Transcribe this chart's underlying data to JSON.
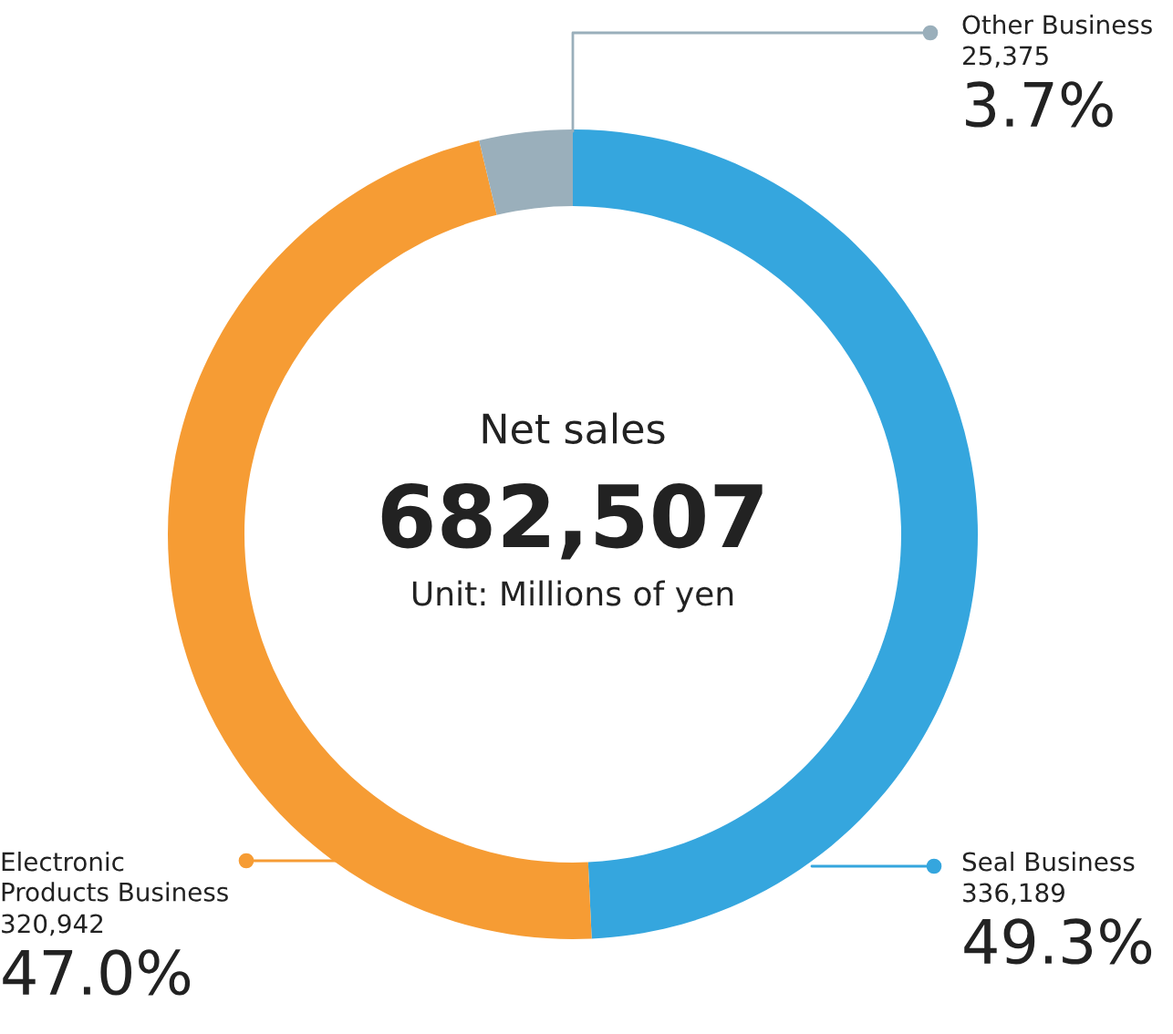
{
  "chart_data": {
    "type": "donut",
    "title": "Net sales",
    "subtitle": "682,507",
    "categories": [
      "Seal Business",
      "Electronic\nProducts Business",
      "Other Business"
    ],
    "values": [
      336189,
      320942,
      25375
    ],
    "colors": [
      "#35a6de",
      "#f69c34",
      "#9aafbb"
    ],
    "value_labels": [
      "336,189",
      "320,942",
      "25,375"
    ],
    "annotations": [
      "Unit: Millions of yen",
      "49.3%",
      "47.0%",
      "3.7%"
    ],
    "legend": "right"
  }
}
